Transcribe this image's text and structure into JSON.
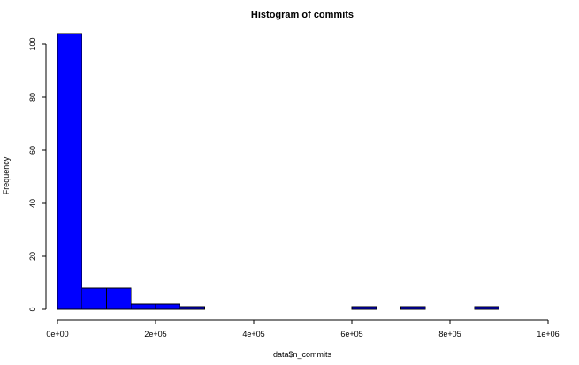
{
  "chart_data": {
    "type": "bar",
    "title": "Histogram of commits",
    "xlabel": "data$n_commits",
    "ylabel": "Frequency",
    "bin_width": 50000,
    "bin_starts": [
      0,
      50000,
      100000,
      150000,
      200000,
      250000,
      300000,
      350000,
      400000,
      450000,
      500000,
      550000,
      600000,
      650000,
      700000,
      750000,
      800000,
      850000
    ],
    "values": [
      104,
      8,
      8,
      2,
      2,
      1,
      0,
      0,
      0,
      0,
      0,
      0,
      1,
      0,
      1,
      0,
      0,
      1
    ],
    "xlim": [
      0,
      1000000
    ],
    "ylim": [
      0,
      104
    ],
    "x_ticks": [
      0,
      200000,
      400000,
      600000,
      800000,
      1000000
    ],
    "x_tick_labels": [
      "0e+00",
      "2e+05",
      "4e+05",
      "6e+05",
      "8e+05",
      "1e+06"
    ],
    "y_ticks": [
      0,
      20,
      40,
      60,
      80,
      100
    ],
    "y_tick_labels": [
      "0",
      "20",
      "40",
      "60",
      "80",
      "100"
    ],
    "bar_color": "#0000ff",
    "grid": false
  }
}
